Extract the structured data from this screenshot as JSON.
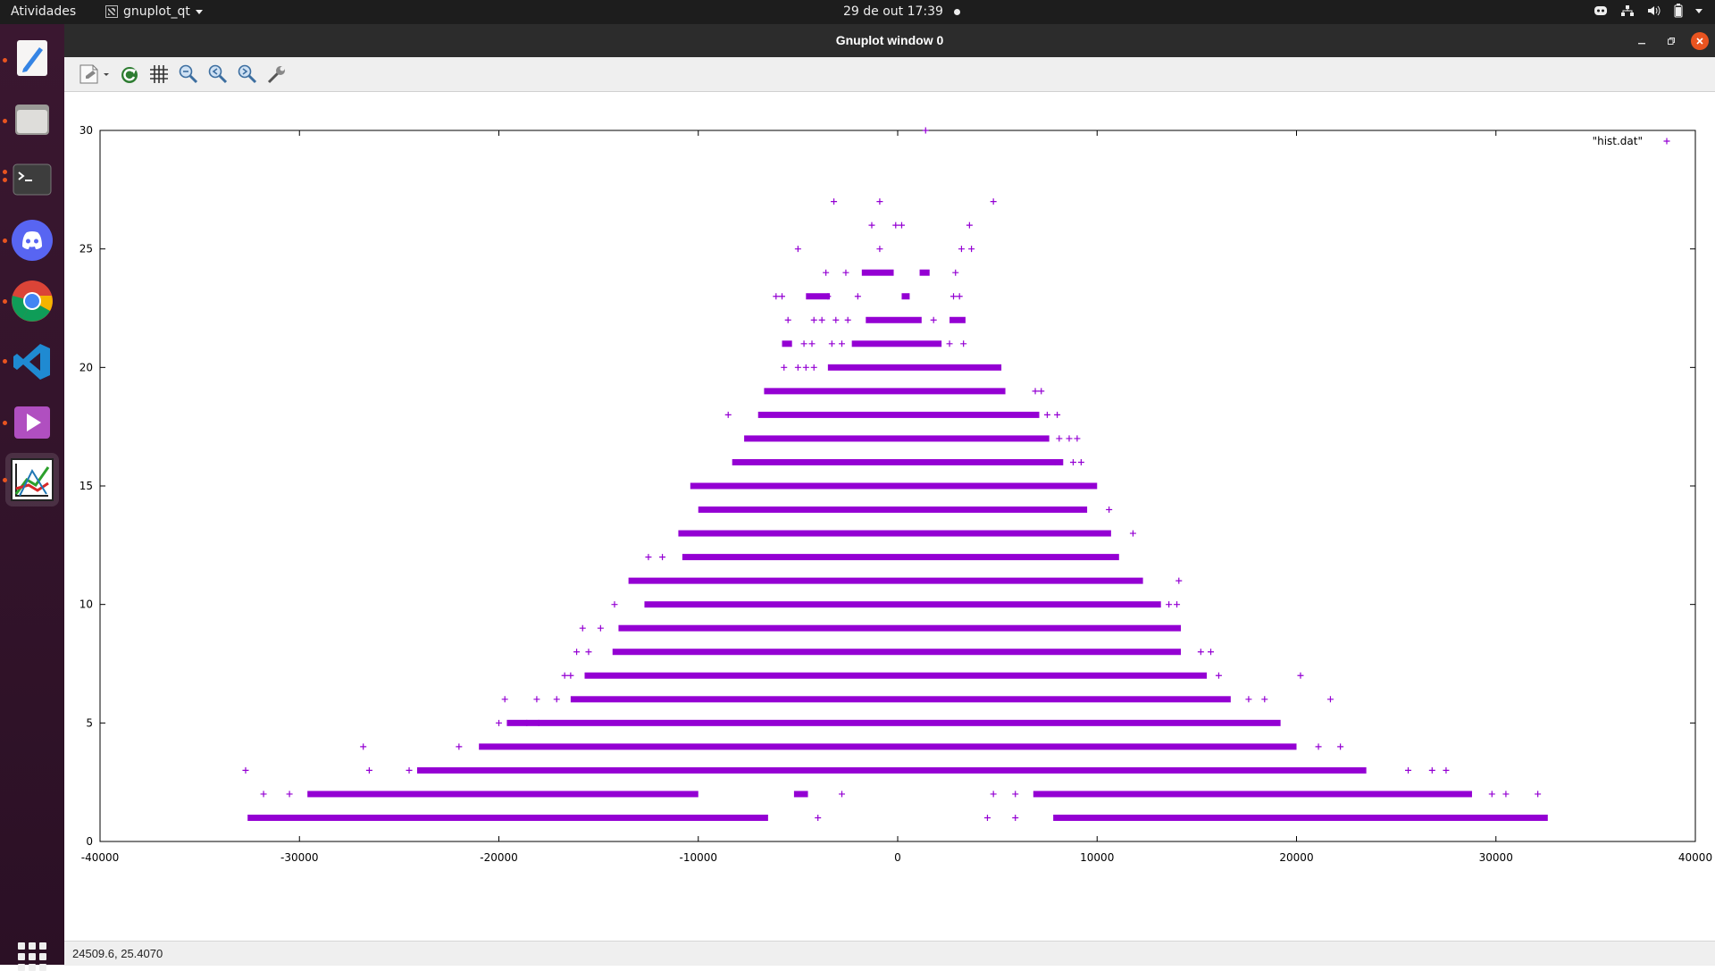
{
  "topbar": {
    "activities": "Atividades",
    "app_name": "gnuplot_qt",
    "clock": "29 de out  17:39"
  },
  "dock": {
    "items": [
      {
        "name": "text-editor-icon",
        "color": "#3584e4"
      },
      {
        "name": "files-icon",
        "color": "#a0a0a0"
      },
      {
        "name": "terminal-icon",
        "color": "#333333"
      },
      {
        "name": "discord-icon",
        "color": "#5865f2"
      },
      {
        "name": "chrome-icon",
        "color": "#4285f4"
      },
      {
        "name": "vscode-icon",
        "color": "#1f8ad2"
      },
      {
        "name": "media-player-icon",
        "color": "#b04fc0"
      },
      {
        "name": "gnuplot-icon",
        "color": "#ffffff"
      }
    ]
  },
  "window": {
    "title": "Gnuplot window 0",
    "status": "24509.6,  25.4070"
  },
  "chart_data": {
    "type": "scatter",
    "title": "",
    "xlabel": "",
    "ylabel": "",
    "xlim": [
      -40000,
      40000
    ],
    "ylim": [
      0,
      30
    ],
    "xticks": [
      -40000,
      -30000,
      -20000,
      -10000,
      0,
      10000,
      20000,
      30000,
      40000
    ],
    "yticks": [
      0,
      5,
      10,
      15,
      20,
      25,
      30
    ],
    "legend": "top-right",
    "marker": "+",
    "color": "#9400d3",
    "series": [
      {
        "name": "\"hist.dat\"",
        "rows": [
          {
            "y": 30,
            "segments": [],
            "points": [
              1400
            ]
          },
          {
            "y": 27,
            "segments": [],
            "points": [
              -3200,
              -900,
              4800
            ]
          },
          {
            "y": 26,
            "segments": [],
            "points": [
              -1300,
              -100,
              200,
              3600
            ]
          },
          {
            "y": 25,
            "segments": [],
            "points": [
              -5000,
              -900,
              3200,
              3700
            ]
          },
          {
            "y": 24,
            "segments": [
              [
                -1800,
                -200
              ],
              [
                1100,
                1600
              ]
            ],
            "points": [
              -3600,
              -2600,
              2900
            ]
          },
          {
            "y": 23,
            "segments": [
              [
                -4600,
                -3400
              ],
              [
                200,
                600
              ]
            ],
            "points": [
              -6100,
              -5800,
              -3500,
              -2000,
              2800,
              3100
            ]
          },
          {
            "y": 22,
            "segments": [
              [
                -1600,
                1200
              ],
              [
                2600,
                3400
              ]
            ],
            "points": [
              -5500,
              -4200,
              -3800,
              -3100,
              -2500,
              1800
            ]
          },
          {
            "y": 21,
            "segments": [
              [
                -5800,
                -5300
              ],
              [
                -2300,
                2200
              ]
            ],
            "points": [
              -4700,
              -4300,
              -3300,
              -2800,
              2600,
              3300
            ]
          },
          {
            "y": 20,
            "segments": [
              [
                -3500,
                5200
              ]
            ],
            "points": [
              -5700,
              -5000,
              -4600,
              -4200
            ]
          },
          {
            "y": 19,
            "segments": [
              [
                -6700,
                5400
              ]
            ],
            "points": [
              6900,
              7200
            ]
          },
          {
            "y": 18,
            "segments": [
              [
                -7000,
                7100
              ]
            ],
            "points": [
              -8500,
              7500,
              8000
            ]
          },
          {
            "y": 17,
            "segments": [
              [
                -7700,
                7600
              ]
            ],
            "points": [
              8100,
              8600,
              9000
            ]
          },
          {
            "y": 16,
            "segments": [
              [
                -8300,
                8300
              ]
            ],
            "points": [
              7900,
              8800,
              9200
            ]
          },
          {
            "y": 15,
            "segments": [
              [
                -10400,
                10000
              ]
            ],
            "points": []
          },
          {
            "y": 14,
            "segments": [
              [
                -10000,
                9500
              ]
            ],
            "points": [
              10600
            ]
          },
          {
            "y": 13,
            "segments": [
              [
                -11000,
                10700
              ]
            ],
            "points": [
              11800
            ]
          },
          {
            "y": 12,
            "segments": [
              [
                -10800,
                11100
              ]
            ],
            "points": [
              -12500,
              -11800
            ]
          },
          {
            "y": 11,
            "segments": [
              [
                -13500,
                12300
              ]
            ],
            "points": [
              14100
            ]
          },
          {
            "y": 10,
            "segments": [
              [
                -12700,
                13200
              ]
            ],
            "points": [
              -14200,
              13600,
              14000
            ]
          },
          {
            "y": 9,
            "segments": [
              [
                -14000,
                14200
              ]
            ],
            "points": [
              -15800,
              -14900
            ]
          },
          {
            "y": 8,
            "segments": [
              [
                -14300,
                14200
              ]
            ],
            "points": [
              -16100,
              -15500,
              15200,
              15700
            ]
          },
          {
            "y": 7,
            "segments": [
              [
                -15700,
                15500
              ]
            ],
            "points": [
              -16700,
              -16400,
              16100,
              20200
            ]
          },
          {
            "y": 6,
            "segments": [
              [
                -16400,
                16700
              ]
            ],
            "points": [
              -19700,
              -18100,
              -17100,
              17600,
              18400,
              21700
            ]
          },
          {
            "y": 5,
            "segments": [
              [
                -19600,
                19200
              ]
            ],
            "points": [
              -20000,
              -18600,
              -18000
            ]
          },
          {
            "y": 4,
            "segments": [
              [
                -21000,
                20000
              ]
            ],
            "points": [
              -26800,
              -22000,
              21100,
              22200
            ]
          },
          {
            "y": 3,
            "segments": [
              [
                -24100,
                23500
              ]
            ],
            "points": [
              -32700,
              -26500,
              -24500,
              25600,
              26800,
              27500
            ]
          },
          {
            "y": 2,
            "segments": [
              [
                -29600,
                -10000
              ],
              [
                -5200,
                -4500
              ],
              [
                6800,
                28800
              ]
            ],
            "points": [
              -31800,
              -30500,
              -2800,
              4800,
              5900,
              29800,
              30500,
              32100
            ]
          },
          {
            "y": 1,
            "segments": [
              [
                -32600,
                -6500
              ],
              [
                7800,
                32600
              ]
            ],
            "points": [
              -4000,
              4500,
              5900
            ]
          }
        ]
      }
    ]
  }
}
